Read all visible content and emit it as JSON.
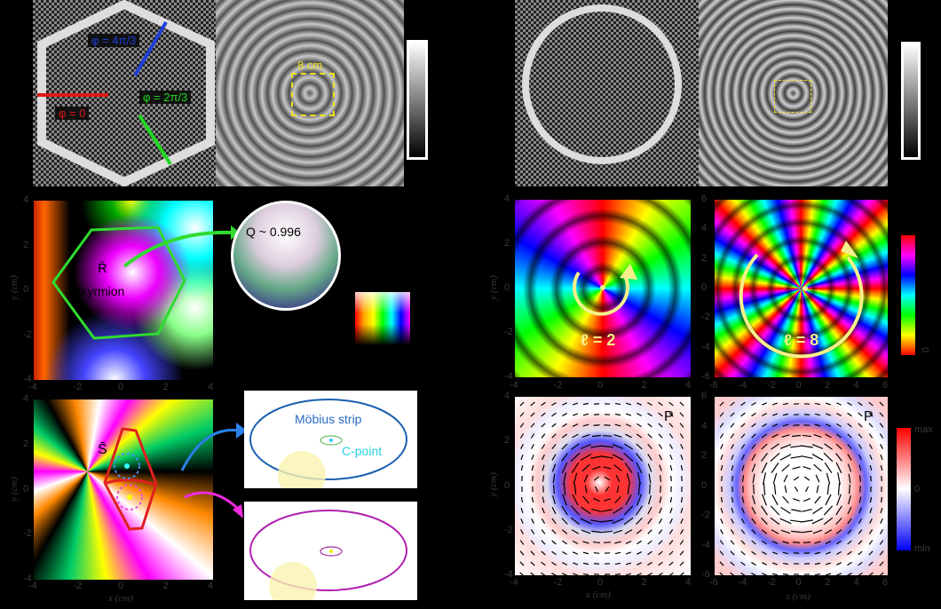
{
  "panel_a": {
    "phase_labels": [
      {
        "text": "φ = 4π/3",
        "color": "#1f3fd8"
      },
      {
        "text": "φ = 2π/3",
        "color": "#22d622"
      },
      {
        "text": "φ = 0",
        "color": "#e01818"
      }
    ],
    "scale_label": "8 cm",
    "scale_color": "#f0e020"
  },
  "panel_skyrmion": {
    "label_R": "R̄",
    "label_skyrmion": "Skyrmion",
    "charge_label": "Q ~ 0.996",
    "hexagon_color": "#2fdc2f",
    "x_ticks": [
      "-4",
      "-2",
      "0",
      "2",
      "4"
    ],
    "y_ticks": [
      "4",
      "2",
      "0",
      "-2",
      "-4"
    ],
    "ylabel": "y (cm)"
  },
  "panel_vortex": {
    "left": {
      "label": "ℓ = 2",
      "x_ticks": [
        "-4",
        "-2",
        "0",
        "2",
        "4"
      ],
      "y_ticks": [
        "4",
        "2",
        "0",
        "-2",
        "-4"
      ]
    },
    "right": {
      "label": "ℓ = 8",
      "x_ticks": [
        "-6",
        "-4",
        "-2",
        "0",
        "2",
        "4",
        "6"
      ],
      "y_ticks": [
        "6",
        "4",
        "2",
        "0",
        "-2",
        "-4",
        "-6"
      ]
    },
    "ylabel": "y (cm)",
    "colorbar_zero": "0",
    "accent": "#f5f08a"
  },
  "panel_mobius": {
    "label_S": "S̄",
    "mobius_label": "Möbius strip",
    "cpoint_label": "C-point",
    "x_ticks": [
      "-4",
      "-2",
      "0",
      "2",
      "4"
    ],
    "y_ticks": [
      "4",
      "2",
      "0",
      "-2",
      "-4"
    ],
    "xlabel": "x (cm)",
    "ylabel": "y (cm)",
    "boundary_color": "#e02020"
  },
  "panel_spin": {
    "left": {
      "label": "P",
      "x_ticks": [
        "-4",
        "-2",
        "0",
        "2",
        "4"
      ],
      "y_ticks": [
        "4",
        "2",
        "0",
        "-2",
        "-4"
      ]
    },
    "right": {
      "label": "P",
      "x_ticks": [
        "-6",
        "-4",
        "-2",
        "0",
        "2",
        "4",
        "6"
      ],
      "y_ticks": [
        "6",
        "4",
        "2",
        "0",
        "-2",
        "-4",
        "-6"
      ]
    },
    "xlabel": "x (cm)",
    "ylabel": "y (cm)",
    "colorbar": {
      "max": "max",
      "zero": "0",
      "min": "min"
    }
  }
}
